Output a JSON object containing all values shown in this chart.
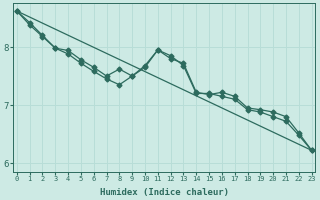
{
  "xlabel": "Humidex (Indice chaleur)",
  "bg_color": "#cdeae4",
  "line_color": "#2d6b5e",
  "grid_color": "#b8ddd7",
  "x_ticks": [
    0,
    1,
    2,
    3,
    4,
    5,
    6,
    7,
    8,
    9,
    10,
    11,
    12,
    13,
    14,
    15,
    16,
    17,
    18,
    19,
    20,
    21,
    22,
    23
  ],
  "y_ticks": [
    6,
    7,
    8
  ],
  "ylim": [
    5.85,
    8.75
  ],
  "xlim": [
    -0.3,
    23.3
  ],
  "series1_x": [
    0,
    1,
    2,
    3,
    4,
    5,
    6,
    7,
    8,
    9,
    10,
    11,
    12,
    13,
    14,
    15,
    16,
    17,
    18,
    19,
    20,
    21,
    22,
    23
  ],
  "series1_y": [
    8.62,
    8.42,
    8.2,
    7.98,
    7.94,
    7.78,
    7.65,
    7.5,
    7.62,
    7.5,
    7.68,
    7.95,
    7.8,
    7.72,
    7.22,
    7.18,
    7.22,
    7.15,
    6.95,
    6.92,
    6.88,
    6.8,
    6.52,
    6.22
  ],
  "series2_x": [
    0,
    1,
    2,
    3,
    4,
    5,
    6,
    7,
    8,
    9,
    10,
    11,
    12,
    13,
    14,
    15,
    16,
    17,
    18,
    19,
    20,
    21,
    22,
    23
  ],
  "series2_y": [
    8.62,
    8.38,
    8.18,
    7.98,
    7.88,
    7.72,
    7.58,
    7.45,
    7.35,
    7.5,
    7.65,
    7.95,
    7.85,
    7.68,
    7.2,
    7.2,
    7.15,
    7.1,
    6.92,
    6.88,
    6.8,
    6.72,
    6.48,
    6.22
  ],
  "series3_x": [
    0,
    23
  ],
  "series3_y": [
    8.62,
    6.22
  ],
  "font_color": "#2d6b5e",
  "marker": "D",
  "markersize": 2.5,
  "linewidth": 0.9
}
